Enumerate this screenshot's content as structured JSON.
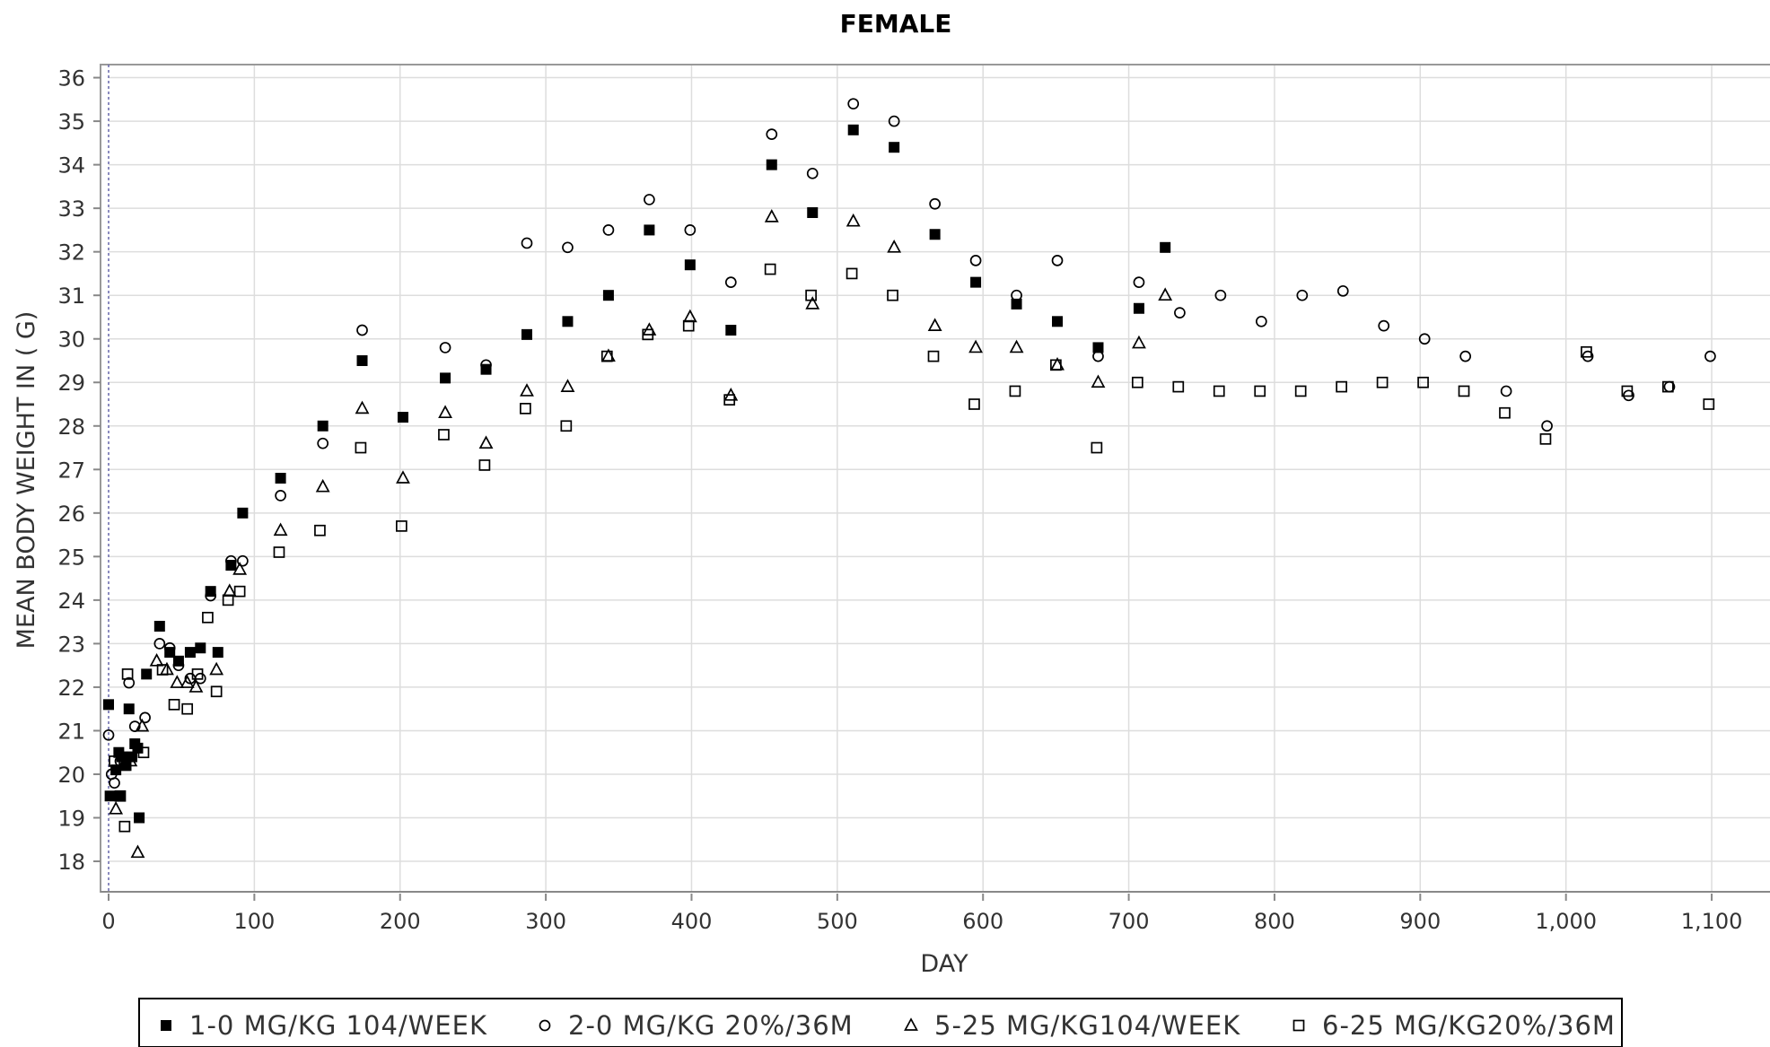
{
  "chart_data": {
    "type": "scatter",
    "title": "FEMALE",
    "xlabel": "DAY",
    "ylabel": "MEAN BODY WEIGHT IN ( G)",
    "xlim": [
      0,
      1140
    ],
    "ylim": [
      17.3,
      36.3
    ],
    "x_ticks": [
      0,
      100,
      200,
      300,
      400,
      500,
      600,
      700,
      800,
      900,
      1000,
      1100
    ],
    "x_tick_labels": [
      "0",
      "100",
      "200",
      "300",
      "400",
      "500",
      "600",
      "700",
      "800",
      "900",
      "1,000",
      "1,100"
    ],
    "y_ticks": [
      18,
      19,
      20,
      21,
      22,
      23,
      24,
      25,
      26,
      27,
      28,
      29,
      30,
      31,
      32,
      33,
      34,
      35,
      36
    ],
    "y_tick_labels": [
      "18",
      "19",
      "20",
      "21",
      "22",
      "23",
      "24",
      "25",
      "26",
      "27",
      "28",
      "29",
      "30",
      "31",
      "32",
      "33",
      "34",
      "35",
      "36"
    ],
    "grid": true,
    "legend_position": "bottom",
    "colors": {
      "marker": "#000000",
      "grid": "#dddddd",
      "axis": "#888888",
      "plot_border": "#999999"
    },
    "series": [
      {
        "name": "1-0 MG/KG 104/WEEK",
        "marker": "filled-square",
        "points": [
          [
            0,
            21.6
          ],
          [
            1,
            19.5
          ],
          [
            5,
            20.1
          ],
          [
            7,
            20.5
          ],
          [
            8,
            19.5
          ],
          [
            9,
            20.4
          ],
          [
            12,
            20.2
          ],
          [
            14,
            21.5
          ],
          [
            16,
            20.4
          ],
          [
            18,
            20.7
          ],
          [
            20,
            20.6
          ],
          [
            21,
            19.0
          ],
          [
            26,
            22.3
          ],
          [
            35,
            23.4
          ],
          [
            42,
            22.8
          ],
          [
            48,
            22.6
          ],
          [
            56,
            22.8
          ],
          [
            63,
            22.9
          ],
          [
            70,
            24.2
          ],
          [
            75,
            22.8
          ],
          [
            84,
            24.8
          ],
          [
            92,
            26.0
          ],
          [
            118,
            26.8
          ],
          [
            147,
            28.0
          ],
          [
            174,
            29.5
          ],
          [
            202,
            28.2
          ],
          [
            231,
            29.1
          ],
          [
            259,
            29.3
          ],
          [
            287,
            30.1
          ],
          [
            315,
            30.4
          ],
          [
            343,
            31.0
          ],
          [
            371,
            32.5
          ],
          [
            399,
            31.7
          ],
          [
            427,
            30.2
          ],
          [
            455,
            34.0
          ],
          [
            483,
            32.9
          ],
          [
            511,
            34.8
          ],
          [
            539,
            34.4
          ],
          [
            567,
            32.4
          ],
          [
            595,
            31.3
          ],
          [
            623,
            30.8
          ],
          [
            651,
            30.4
          ],
          [
            679,
            29.8
          ],
          [
            707,
            30.7
          ],
          [
            725,
            32.1
          ]
        ]
      },
      {
        "name": "2-0 MG/KG 20%/36M",
        "marker": "hollow-circle",
        "points": [
          [
            0,
            20.9
          ],
          [
            2,
            20.0
          ],
          [
            4,
            19.8
          ],
          [
            8,
            20.3
          ],
          [
            14,
            22.1
          ],
          [
            18,
            21.1
          ],
          [
            25,
            21.3
          ],
          [
            35,
            23.0
          ],
          [
            42,
            22.9
          ],
          [
            48,
            22.5
          ],
          [
            56,
            22.2
          ],
          [
            63,
            22.2
          ],
          [
            70,
            24.1
          ],
          [
            84,
            24.9
          ],
          [
            92,
            24.9
          ],
          [
            118,
            26.4
          ],
          [
            147,
            27.6
          ],
          [
            174,
            30.2
          ],
          [
            231,
            29.8
          ],
          [
            259,
            29.4
          ],
          [
            287,
            32.2
          ],
          [
            315,
            32.1
          ],
          [
            343,
            32.5
          ],
          [
            371,
            33.2
          ],
          [
            399,
            32.5
          ],
          [
            427,
            31.3
          ],
          [
            455,
            34.7
          ],
          [
            483,
            33.8
          ],
          [
            511,
            35.4
          ],
          [
            539,
            35.0
          ],
          [
            567,
            33.1
          ],
          [
            595,
            31.8
          ],
          [
            623,
            31.0
          ],
          [
            651,
            31.8
          ],
          [
            679,
            29.6
          ],
          [
            707,
            31.3
          ],
          [
            735,
            30.6
          ],
          [
            763,
            31.0
          ],
          [
            791,
            30.4
          ],
          [
            819,
            31.0
          ],
          [
            847,
            31.1
          ],
          [
            875,
            30.3
          ],
          [
            903,
            30.0
          ],
          [
            931,
            29.6
          ],
          [
            959,
            28.8
          ],
          [
            987,
            28.0
          ],
          [
            1015,
            29.6
          ],
          [
            1043,
            28.7
          ],
          [
            1071,
            28.9
          ],
          [
            1099,
            29.6
          ]
        ]
      },
      {
        "name": "5-25 MG/KG104/WEEK",
        "marker": "hollow-triangle",
        "points": [
          [
            5,
            19.2
          ],
          [
            10,
            20.2
          ],
          [
            15,
            20.3
          ],
          [
            20,
            18.2
          ],
          [
            23,
            21.1
          ],
          [
            33,
            22.6
          ],
          [
            40,
            22.4
          ],
          [
            47,
            22.1
          ],
          [
            54,
            22.1
          ],
          [
            60,
            22.0
          ],
          [
            74,
            22.4
          ],
          [
            83,
            24.2
          ],
          [
            90,
            24.7
          ],
          [
            118,
            25.6
          ],
          [
            147,
            26.6
          ],
          [
            174,
            28.4
          ],
          [
            202,
            26.8
          ],
          [
            231,
            28.3
          ],
          [
            259,
            27.6
          ],
          [
            287,
            28.8
          ],
          [
            315,
            28.9
          ],
          [
            343,
            29.6
          ],
          [
            371,
            30.2
          ],
          [
            399,
            30.5
          ],
          [
            427,
            28.7
          ],
          [
            455,
            32.8
          ],
          [
            483,
            30.8
          ],
          [
            511,
            32.7
          ],
          [
            539,
            32.1
          ],
          [
            567,
            30.3
          ],
          [
            595,
            29.8
          ],
          [
            623,
            29.8
          ],
          [
            651,
            29.4
          ],
          [
            679,
            29.0
          ],
          [
            707,
            29.9
          ],
          [
            725,
            31.0
          ]
        ]
      },
      {
        "name": "6-25 MG/KG20%/36M",
        "marker": "hollow-square",
        "points": [
          [
            4,
            20.3
          ],
          [
            8,
            19.5
          ],
          [
            11,
            18.8
          ],
          [
            13,
            22.3
          ],
          [
            24,
            20.5
          ],
          [
            37,
            22.4
          ],
          [
            45,
            21.6
          ],
          [
            54,
            21.5
          ],
          [
            61,
            22.3
          ],
          [
            68,
            23.6
          ],
          [
            74,
            21.9
          ],
          [
            82,
            24.0
          ],
          [
            90,
            24.2
          ],
          [
            117,
            25.1
          ],
          [
            145,
            25.6
          ],
          [
            173,
            27.5
          ],
          [
            201,
            25.7
          ],
          [
            230,
            27.8
          ],
          [
            258,
            27.1
          ],
          [
            286,
            28.4
          ],
          [
            314,
            28.0
          ],
          [
            342,
            29.6
          ],
          [
            370,
            30.1
          ],
          [
            398,
            30.3
          ],
          [
            426,
            28.6
          ],
          [
            454,
            31.6
          ],
          [
            482,
            31.0
          ],
          [
            510,
            31.5
          ],
          [
            538,
            31.0
          ],
          [
            566,
            29.6
          ],
          [
            594,
            28.5
          ],
          [
            622,
            28.8
          ],
          [
            650,
            29.4
          ],
          [
            678,
            27.5
          ],
          [
            706,
            29.0
          ],
          [
            734,
            28.9
          ],
          [
            762,
            28.8
          ],
          [
            790,
            28.8
          ],
          [
            818,
            28.8
          ],
          [
            846,
            28.9
          ],
          [
            874,
            29.0
          ],
          [
            902,
            29.0
          ],
          [
            930,
            28.8
          ],
          [
            958,
            28.3
          ],
          [
            986,
            27.7
          ],
          [
            1014,
            29.7
          ],
          [
            1042,
            28.8
          ],
          [
            1070,
            28.9
          ],
          [
            1098,
            28.5
          ]
        ]
      }
    ]
  }
}
